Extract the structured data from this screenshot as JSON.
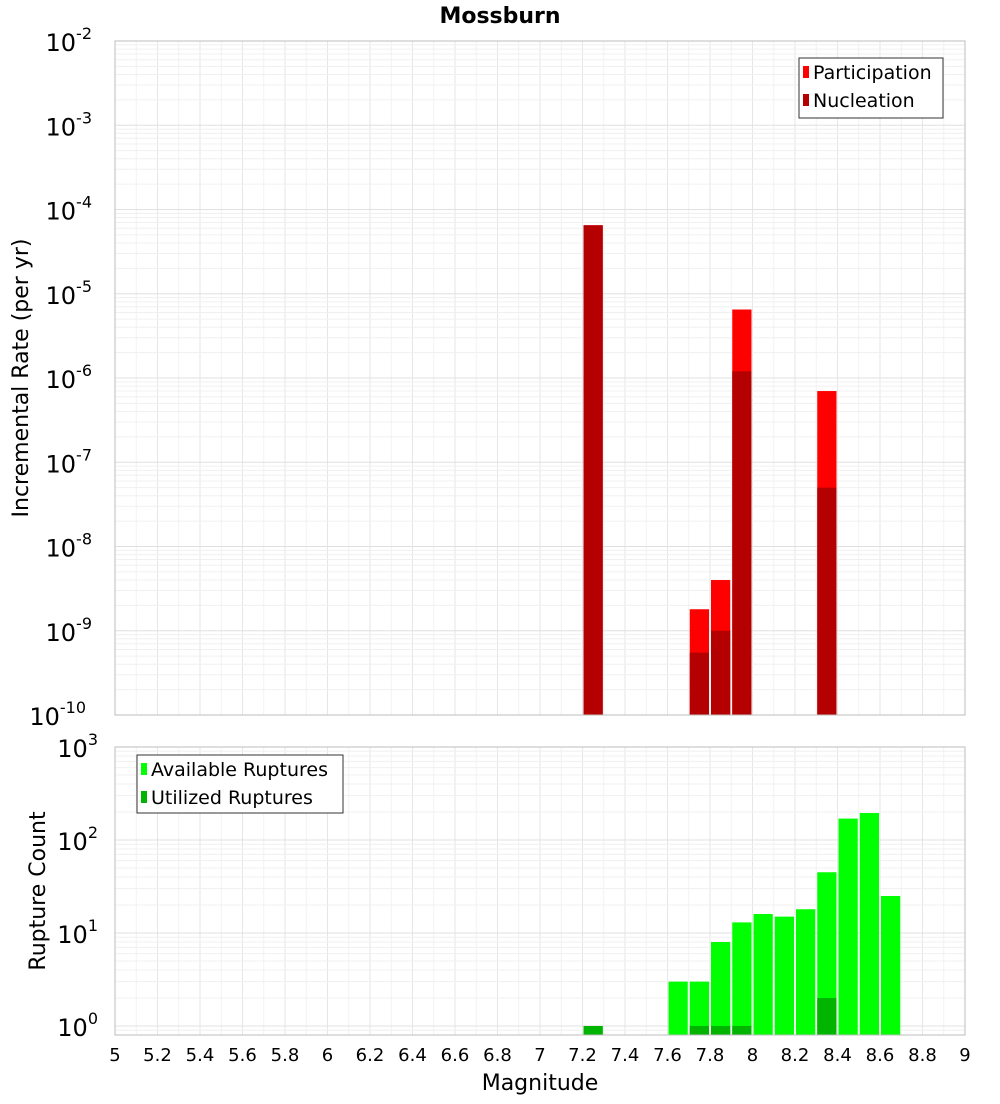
{
  "chart_data": [
    {
      "type": "bar",
      "title": "Mossburn",
      "ylabel": "Incremental Rate (per yr)",
      "xlabel": "",
      "xlim": [
        5,
        9
      ],
      "ylim": [
        1e-10,
        0.01
      ],
      "y_scale": "log",
      "bin_width": 0.1,
      "grid": true,
      "legend_position": "top-right",
      "series": [
        {
          "name": "Participation",
          "color": "#ff0000",
          "x": [
            7.25,
            7.75,
            7.85,
            7.95,
            8.35
          ],
          "values": [
            6.5e-05,
            1.8e-09,
            4e-09,
            6.5e-06,
            7e-07
          ]
        },
        {
          "name": "Nucleation",
          "color": "#b40000",
          "x": [
            7.25,
            7.75,
            7.85,
            7.95,
            8.35
          ],
          "values": [
            6.5e-05,
            5.5e-10,
            1e-09,
            1.2e-06,
            5e-08
          ]
        }
      ],
      "yticks": [
        {
          "base": "10",
          "exp": "-2"
        },
        {
          "base": "10",
          "exp": "-3"
        },
        {
          "base": "10",
          "exp": "-4"
        },
        {
          "base": "10",
          "exp": "-5"
        },
        {
          "base": "10",
          "exp": "-6"
        },
        {
          "base": "10",
          "exp": "-7"
        },
        {
          "base": "10",
          "exp": "-8"
        },
        {
          "base": "10",
          "exp": "-9"
        },
        {
          "base": "10",
          "exp": "-10"
        }
      ]
    },
    {
      "type": "bar",
      "title": "",
      "ylabel": "Rupture Count",
      "xlabel": "Magnitude",
      "xlim": [
        5,
        9
      ],
      "ylim": [
        0.8,
        1000
      ],
      "y_scale": "log",
      "bin_width": 0.1,
      "grid": true,
      "legend_position": "top-left",
      "series": [
        {
          "name": "Available Ruptures",
          "color": "#00ff00",
          "x": [
            7.25,
            7.65,
            7.75,
            7.85,
            7.95,
            8.05,
            8.15,
            8.25,
            8.35,
            8.45,
            8.55,
            8.65
          ],
          "values": [
            1,
            3,
            3,
            8,
            13,
            16,
            15,
            18,
            45,
            170,
            195,
            25
          ]
        },
        {
          "name": "Utilized Ruptures",
          "color": "#00b400",
          "x": [
            7.25,
            7.75,
            7.85,
            7.95,
            8.35
          ],
          "values": [
            1,
            1,
            1,
            1,
            2
          ]
        }
      ],
      "yticks": [
        {
          "base": "10",
          "exp": "3"
        },
        {
          "base": "10",
          "exp": "2"
        },
        {
          "base": "10",
          "exp": "1"
        },
        {
          "base": "10",
          "exp": "0"
        }
      ],
      "xticks": [
        "5",
        "5.2",
        "5.4",
        "5.6",
        "5.8",
        "6",
        "6.2",
        "6.4",
        "6.6",
        "6.8",
        "7",
        "7.2",
        "7.4",
        "7.6",
        "7.8",
        "8",
        "8.2",
        "8.4",
        "8.6",
        "8.8",
        "9"
      ]
    }
  ]
}
